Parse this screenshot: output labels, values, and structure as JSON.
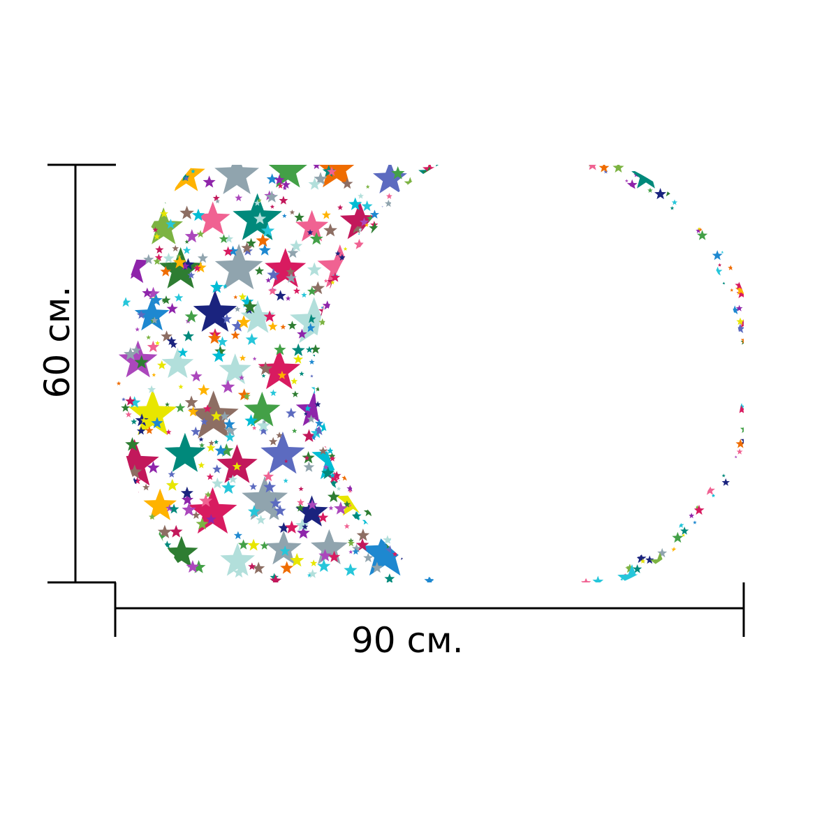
{
  "dimensions": {
    "width_label": "90 см.",
    "height_label": "60 см.",
    "line_color": "#000000"
  },
  "artwork": {
    "subject": "star-crescent-moon",
    "background": "#ffffff",
    "palette": [
      "#e8e600",
      "#1e88d0",
      "#1a237e",
      "#c2185b",
      "#2e7d32",
      "#f06292",
      "#7cb342",
      "#00bcd4",
      "#8e24aa",
      "#ef6c00",
      "#5c6bc0",
      "#00897b",
      "#90a4ae",
      "#d81b60",
      "#43a047",
      "#ffb300",
      "#26c6da",
      "#ab47bc",
      "#b2dfdb",
      "#8d6e63"
    ]
  }
}
